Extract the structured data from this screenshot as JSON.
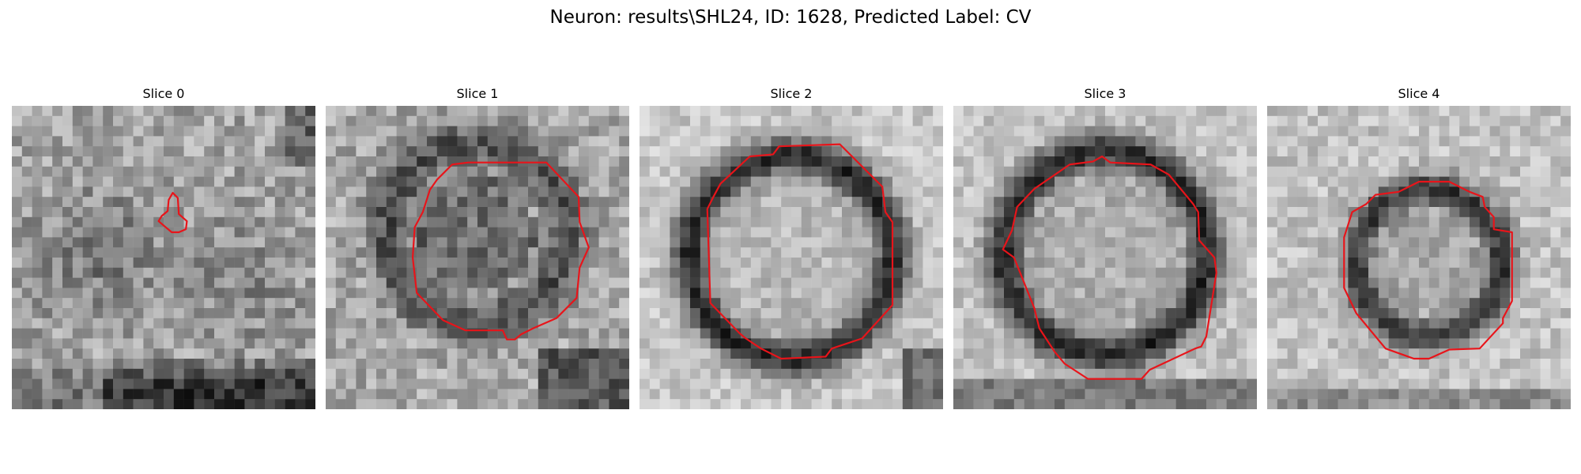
{
  "figure": {
    "title": "Neuron: results\\SHL24, ID: 1628, Predicted Label: CV"
  },
  "panels": [
    {
      "title": "Slice 0"
    },
    {
      "title": "Slice 1"
    },
    {
      "title": "Slice 2"
    },
    {
      "title": "Slice 3"
    },
    {
      "title": "Slice 4"
    }
  ],
  "colors": {
    "contour": "#e8141a",
    "background": "#ffffff"
  }
}
